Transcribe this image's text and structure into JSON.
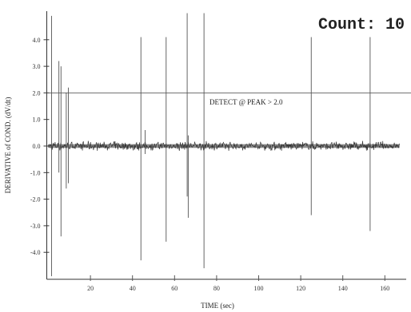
{
  "counter": {
    "label": "Count:",
    "value": "10"
  },
  "chart_data": {
    "type": "line",
    "title": "",
    "xlabel": "TIME (sec)",
    "ylabel": "DERIVATIVE of COND. (dV/dt)",
    "xlim": [
      0,
      167
    ],
    "ylim": [
      -4.9,
      5.0
    ],
    "x_ticks": [
      20,
      40,
      60,
      80,
      100,
      120,
      140,
      160
    ],
    "y_ticks": [
      4.0,
      3.0,
      2.0,
      1.0,
      0.0,
      -1.0,
      -2.0,
      -3.0,
      -4.0
    ],
    "y_tick_labels": [
      "4.0",
      "3.0",
      "2.0",
      "1.0",
      "0.0",
      "-1.0",
      "-2.0",
      "-3.0",
      "-4.0"
    ],
    "threshold": {
      "value": 2.0,
      "label": "DETECT @ PEAK > 2.0"
    },
    "noise_amplitude": 0.15,
    "noise_x_range": [
      0,
      167
    ],
    "spikes": [
      {
        "x": 1.5,
        "high": 4.9,
        "low": -4.9
      },
      {
        "x": 5.0,
        "high": 3.2,
        "low": -1.0
      },
      {
        "x": 6.0,
        "high": 3.0,
        "low": -3.4
      },
      {
        "x": 8.5,
        "high": 2.0,
        "low": -1.6
      },
      {
        "x": 9.5,
        "high": 2.2,
        "low": -1.4
      },
      {
        "x": 44,
        "high": 4.1,
        "low": -4.3
      },
      {
        "x": 46,
        "high": 0.6,
        "low": -0.3
      },
      {
        "x": 56,
        "high": 4.1,
        "low": -3.6
      },
      {
        "x": 66,
        "high": 5.0,
        "low": -1.9
      },
      {
        "x": 66.5,
        "high": 0.4,
        "low": -2.7
      },
      {
        "x": 74,
        "high": 5.0,
        "low": -4.6
      },
      {
        "x": 125,
        "high": 4.1,
        "low": -2.6
      },
      {
        "x": 153,
        "high": 4.1,
        "low": -3.2
      }
    ]
  }
}
